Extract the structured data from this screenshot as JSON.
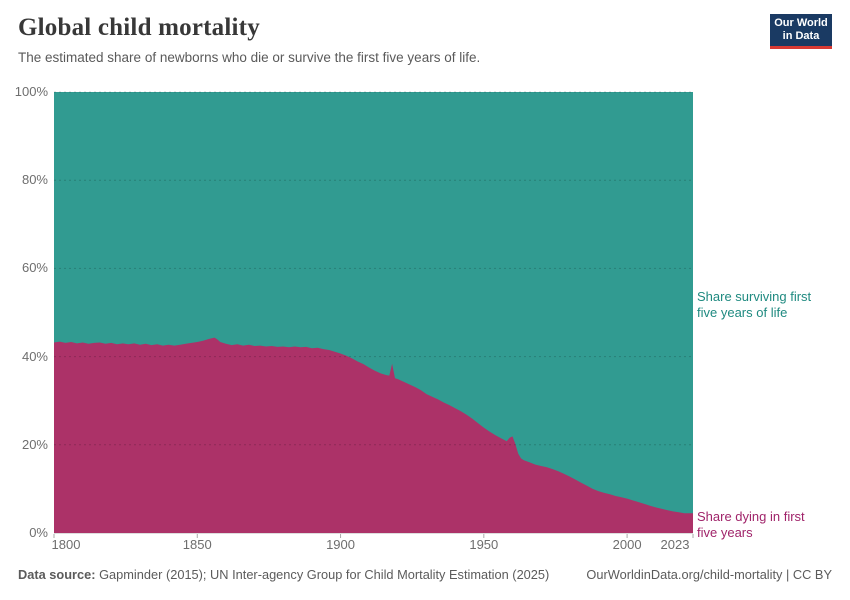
{
  "header": {
    "title": "Global child mortality",
    "subtitle": "The estimated share of newborns who die or survive the first five years of life.",
    "logo": {
      "line1": "Our World",
      "line2": "in Data"
    }
  },
  "colors": {
    "surviving_area": "#319B91",
    "dying_area": "#AC3268",
    "surviving_label_text": "#1F8A80",
    "dying_label_text": "#A0246A",
    "logo_background": "#1A3A63",
    "logo_red_bar": "#D93A34",
    "tick_text": "#6e6e6e",
    "gridline": "rgba(0,0,0,0.18)"
  },
  "chart_data": {
    "type": "area",
    "stacked": true,
    "title": "Global child mortality",
    "xlabel": "",
    "ylabel": "",
    "y_unit": "%",
    "x_range": [
      1800,
      2023
    ],
    "y_range": [
      0,
      100
    ],
    "x_ticks": [
      1800,
      1850,
      1900,
      1950,
      2000,
      2023
    ],
    "y_ticks": [
      0,
      20,
      40,
      60,
      80,
      100
    ],
    "grid": "horizontal dashed",
    "legend_position": "right-edge entity labels",
    "x": [
      1800,
      1802,
      1804,
      1806,
      1808,
      1810,
      1812,
      1814,
      1816,
      1818,
      1820,
      1822,
      1824,
      1826,
      1828,
      1830,
      1832,
      1834,
      1836,
      1838,
      1840,
      1842,
      1844,
      1846,
      1848,
      1850,
      1852,
      1854,
      1856,
      1857,
      1858,
      1860,
      1862,
      1864,
      1866,
      1868,
      1870,
      1872,
      1874,
      1876,
      1878,
      1880,
      1882,
      1884,
      1886,
      1888,
      1890,
      1892,
      1894,
      1896,
      1898,
      1900,
      1902,
      1904,
      1906,
      1908,
      1910,
      1912,
      1914,
      1916,
      1917,
      1918,
      1919,
      1920,
      1922,
      1924,
      1926,
      1928,
      1930,
      1932,
      1934,
      1936,
      1938,
      1940,
      1942,
      1944,
      1946,
      1948,
      1950,
      1952,
      1954,
      1956,
      1958,
      1959,
      1960,
      1961,
      1962,
      1963,
      1964,
      1966,
      1968,
      1970,
      1972,
      1974,
      1976,
      1978,
      1980,
      1982,
      1984,
      1986,
      1988,
      1990,
      1992,
      1994,
      1996,
      1998,
      2000,
      2002,
      2004,
      2006,
      2008,
      2010,
      2012,
      2014,
      2016,
      2018,
      2020,
      2023
    ],
    "series": [
      {
        "name": "Share dying in first five years",
        "color": "#AC3268",
        "values": [
          43.2,
          43.4,
          43.1,
          43.3,
          43.0,
          43.2,
          42.9,
          43.1,
          43.2,
          42.9,
          43.1,
          42.8,
          43.0,
          42.8,
          43.0,
          42.7,
          42.9,
          42.6,
          42.8,
          42.5,
          42.7,
          42.5,
          42.7,
          42.9,
          43.1,
          43.3,
          43.6,
          44.0,
          44.3,
          43.9,
          43.3,
          42.9,
          42.6,
          42.8,
          42.5,
          42.7,
          42.4,
          42.5,
          42.3,
          42.4,
          42.2,
          42.3,
          42.1,
          42.3,
          42.1,
          42.2,
          41.9,
          42.0,
          41.7,
          41.5,
          41.1,
          40.7,
          40.2,
          39.6,
          38.9,
          38.3,
          37.5,
          36.8,
          36.2,
          35.8,
          35.7,
          38.4,
          35.1,
          34.9,
          34.3,
          33.7,
          33.1,
          32.4,
          31.5,
          30.9,
          30.3,
          29.6,
          29.0,
          28.3,
          27.6,
          26.8,
          25.9,
          24.9,
          23.9,
          23.0,
          22.2,
          21.5,
          20.8,
          21.6,
          21.9,
          20.2,
          18.0,
          16.9,
          16.5,
          16.0,
          15.5,
          15.2,
          14.9,
          14.5,
          14.0,
          13.4,
          12.8,
          12.1,
          11.4,
          10.7,
          10.0,
          9.5,
          9.1,
          8.8,
          8.4,
          8.1,
          7.8,
          7.4,
          7.0,
          6.6,
          6.2,
          5.8,
          5.5,
          5.2,
          4.9,
          4.7,
          4.5,
          4.5
        ]
      },
      {
        "name": "Share surviving first five years of life",
        "color": "#319B91",
        "derived": "100 minus share dying (areas stack to 100%)"
      }
    ],
    "annotations": {
      "surviving_line1": "Share surviving first",
      "surviving_line2": "five years of life",
      "dying_line1": "Share dying in first",
      "dying_line2": "five years"
    }
  },
  "footer": {
    "source_label": "Data source:",
    "source_text": " Gapminder (2015); UN Inter-agency Group for Child Mortality Estimation (2025)",
    "link": "OurWorldinData.org/child-mortality | CC BY"
  }
}
